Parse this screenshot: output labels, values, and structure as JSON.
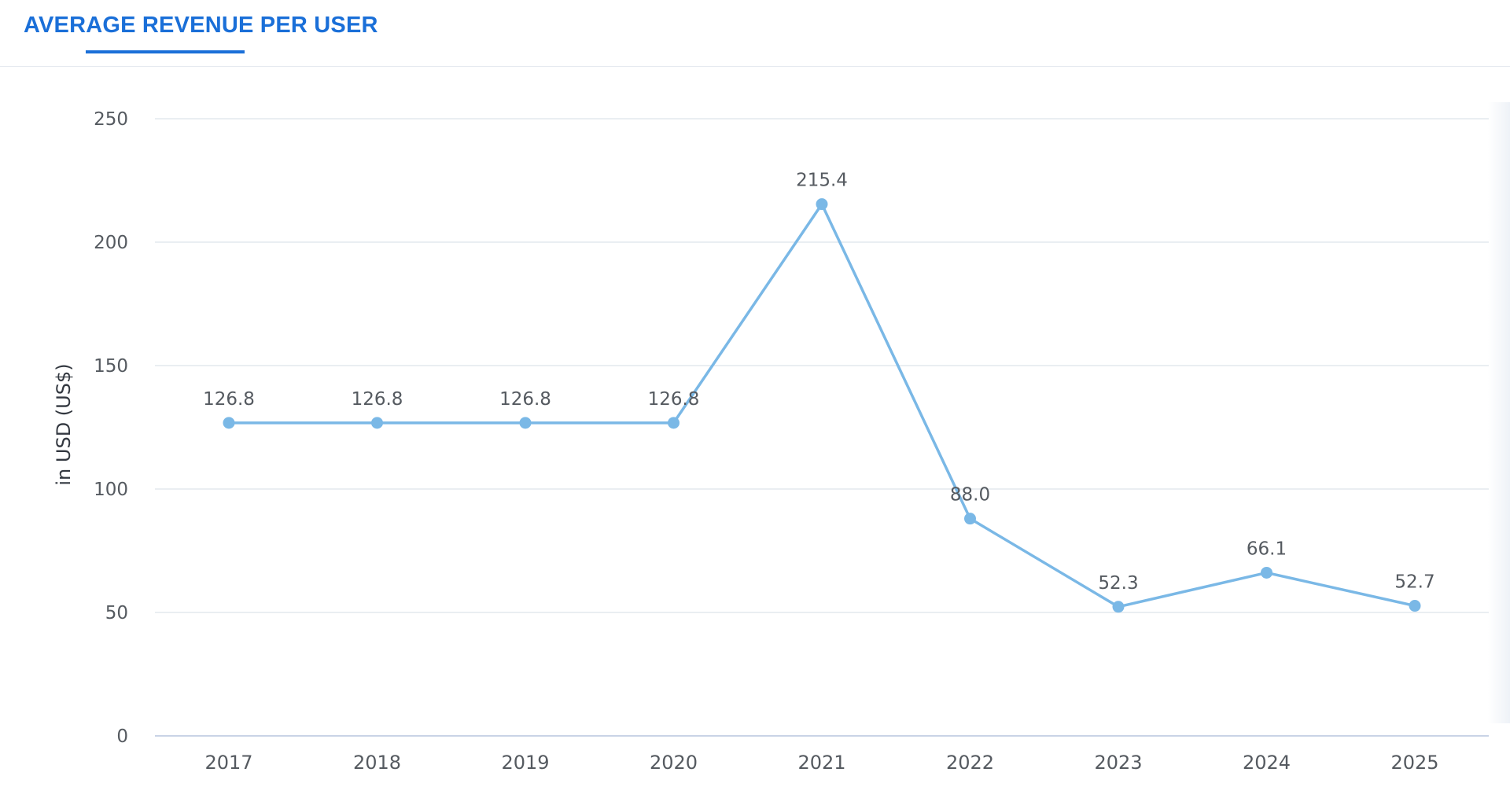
{
  "tab": {
    "label": "AVERAGE REVENUE PER USER",
    "color": "#1a6fd8"
  },
  "chart_data": {
    "type": "line",
    "categories": [
      "2017",
      "2018",
      "2019",
      "2020",
      "2021",
      "2022",
      "2023",
      "2024",
      "2025"
    ],
    "series": [
      {
        "values": [
          126.8,
          126.8,
          126.8,
          126.8,
          215.4,
          88.0,
          52.3,
          66.1,
          52.7
        ],
        "data_labels": [
          "126.8",
          "126.8",
          "126.8",
          "126.8",
          "215.4",
          "88.0",
          "52.3",
          "66.1",
          "52.7"
        ],
        "color": "#7ab8e6"
      }
    ],
    "ylabel": "in USD (US$)",
    "ylim": [
      0,
      250
    ],
    "yticks": [
      0,
      50,
      100,
      150,
      200,
      250
    ],
    "grid": true,
    "legend": "none"
  }
}
